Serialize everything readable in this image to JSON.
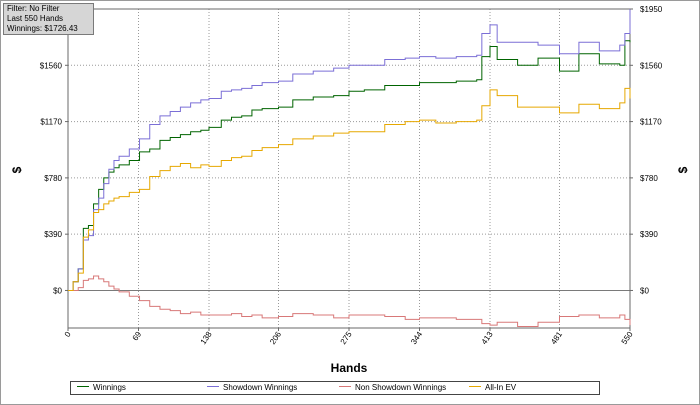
{
  "info_box": {
    "filter": "Filter: No Filter",
    "hands": "Last  550 Hands",
    "winnings": "Winnings: $1726.43"
  },
  "chart_data": {
    "type": "line",
    "xlabel": "Hands",
    "ylabel_left": "$",
    "ylabel_right": "$",
    "xlim": [
      0,
      550
    ],
    "ylim": [
      -260,
      1950
    ],
    "x_ticks": [
      0,
      69,
      138,
      206,
      275,
      344,
      413,
      481,
      550
    ],
    "y_ticks": [
      0,
      390,
      780,
      1170,
      1560,
      1950
    ],
    "y_tick_labels": [
      "$0",
      "$390",
      "$780",
      "$1170",
      "$1560",
      "$1950"
    ],
    "grid": true,
    "x": [
      0,
      5,
      10,
      15,
      20,
      25,
      30,
      35,
      40,
      45,
      50,
      60,
      70,
      80,
      90,
      100,
      110,
      120,
      130,
      138,
      150,
      160,
      170,
      180,
      190,
      206,
      220,
      240,
      260,
      275,
      290,
      310,
      330,
      344,
      360,
      380,
      400,
      405,
      413,
      420,
      440,
      460,
      481,
      500,
      520,
      540,
      545,
      550
    ],
    "series": [
      {
        "name": "Winnings",
        "color": "#006400",
        "values": [
          0,
          60,
          150,
          430,
          450,
          600,
          700,
          780,
          820,
          850,
          870,
          900,
          960,
          980,
          1040,
          1060,
          1080,
          1100,
          1110,
          1130,
          1180,
          1200,
          1210,
          1250,
          1260,
          1270,
          1320,
          1340,
          1350,
          1380,
          1390,
          1420,
          1420,
          1440,
          1440,
          1450,
          1460,
          1620,
          1690,
          1600,
          1560,
          1610,
          1520,
          1640,
          1570,
          1560,
          1730,
          1720
        ]
      },
      {
        "name": "Showdown Winnings",
        "color": "#7b6fd6",
        "values": [
          0,
          60,
          150,
          350,
          380,
          560,
          640,
          740,
          840,
          900,
          930,
          980,
          1050,
          1150,
          1210,
          1240,
          1270,
          1300,
          1320,
          1330,
          1380,
          1390,
          1400,
          1420,
          1440,
          1450,
          1500,
          1520,
          1540,
          1560,
          1560,
          1600,
          1610,
          1620,
          1610,
          1620,
          1630,
          1780,
          1840,
          1720,
          1720,
          1700,
          1640,
          1720,
          1660,
          1700,
          1780,
          1950
        ]
      },
      {
        "name": "Non Showdown Winnings",
        "color": "#d87878",
        "values": [
          0,
          0,
          20,
          70,
          80,
          100,
          80,
          60,
          30,
          10,
          -10,
          -40,
          -70,
          -110,
          -130,
          -140,
          -160,
          -150,
          -170,
          -170,
          -170,
          -160,
          -180,
          -170,
          -190,
          -180,
          -160,
          -170,
          -190,
          -170,
          -170,
          -180,
          -200,
          -190,
          -190,
          -200,
          -200,
          -230,
          -240,
          -220,
          -250,
          -220,
          -180,
          -170,
          -190,
          -170,
          -200,
          -240
        ]
      },
      {
        "name": "All-In EV",
        "color": "#e6a800",
        "values": [
          0,
          60,
          120,
          370,
          420,
          540,
          560,
          600,
          620,
          640,
          650,
          680,
          700,
          790,
          830,
          860,
          880,
          850,
          870,
          860,
          900,
          920,
          930,
          970,
          990,
          1010,
          1050,
          1070,
          1090,
          1100,
          1100,
          1150,
          1170,
          1180,
          1160,
          1170,
          1180,
          1280,
          1390,
          1350,
          1270,
          1270,
          1230,
          1290,
          1260,
          1300,
          1400,
          1330
        ]
      }
    ]
  }
}
